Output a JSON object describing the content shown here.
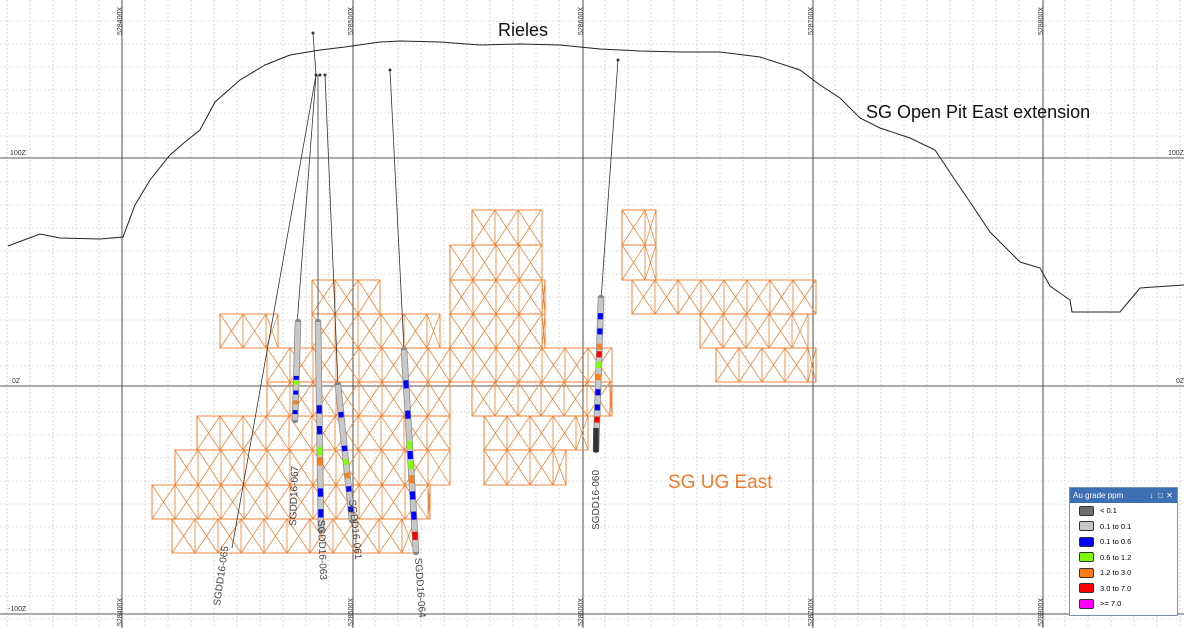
{
  "section": {
    "title": "Rieles",
    "pit_label": "SG Open Pit East extension",
    "ug_label": "SG UG East",
    "ug_color": "#f07b2a",
    "x_labels": [
      "528400X",
      "528500X",
      "528600X",
      "528700X",
      "528800X"
    ],
    "z_labels": [
      "100Z",
      "0Z",
      "-100Z"
    ]
  },
  "holes": [
    {
      "name": "SGDD16-065"
    },
    {
      "name": "SGDD16-067"
    },
    {
      "name": "SGDD16-063"
    },
    {
      "name": "SGDD16-061"
    },
    {
      "name": "SGDD16-064"
    },
    {
      "name": "SGDD16-060"
    }
  ],
  "legend": {
    "title": "Au grade ppm",
    "pin_icon": "pin-icon",
    "maximize_icon": "maximize-icon",
    "close_icon": "close-icon",
    "items": [
      {
        "label": "< 0.1",
        "color": "#6e6e6e"
      },
      {
        "label": "0.1 to 0.1",
        "color": "#c8c8c8"
      },
      {
        "label": "0.1 to 0.6",
        "color": "#0000ff"
      },
      {
        "label": "0.6 to 1.2",
        "color": "#7cff00"
      },
      {
        "label": "1.2 to 3.0",
        "color": "#ff7d12"
      },
      {
        "label": "3.0 to 7.0",
        "color": "#ff0000"
      },
      {
        "label": ">= 7.0",
        "color": "#ff00ff"
      }
    ]
  }
}
